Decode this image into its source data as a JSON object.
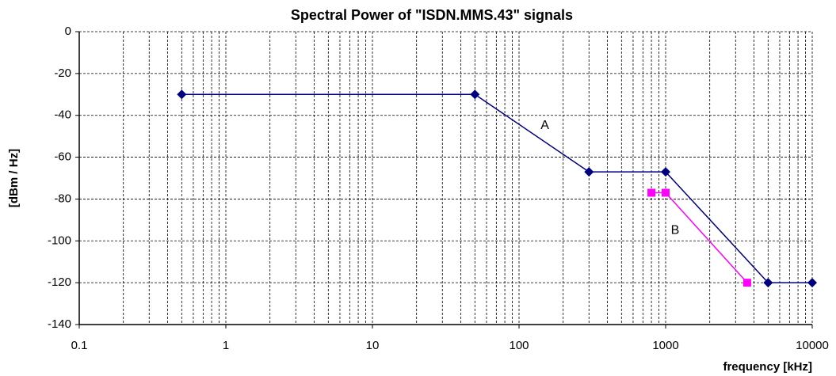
{
  "chart_data": {
    "type": "line",
    "title": "Spectral Power of \"ISDN.MMS.43\" signals",
    "xlabel": "frequency [kHz]",
    "ylabel": "[dBm / Hz]",
    "xscale": "log",
    "xlim": [
      0.1,
      10000
    ],
    "xticks": [
      0.1,
      1,
      10,
      100,
      1000,
      10000
    ],
    "ylim": [
      -140,
      0
    ],
    "yticks": [
      -140,
      -120,
      -100,
      -80,
      -60,
      -40,
      -20,
      0
    ],
    "grid": true,
    "minor_grid": true,
    "series": [
      {
        "name": "A",
        "color": "#000080",
        "x": [
          0.5,
          50,
          300,
          1000,
          5000,
          10000
        ],
        "values": [
          -30,
          -30,
          -67,
          -67,
          -120,
          -120
        ]
      },
      {
        "name": "B",
        "color": "#ff00ff",
        "x": [
          800,
          1000,
          3600
        ],
        "values": [
          -77,
          -77,
          -120
        ]
      }
    ],
    "annotations": [
      {
        "text": "A",
        "x": 150,
        "y": -45
      },
      {
        "text": "B",
        "x": 1160,
        "y": -95
      }
    ]
  }
}
